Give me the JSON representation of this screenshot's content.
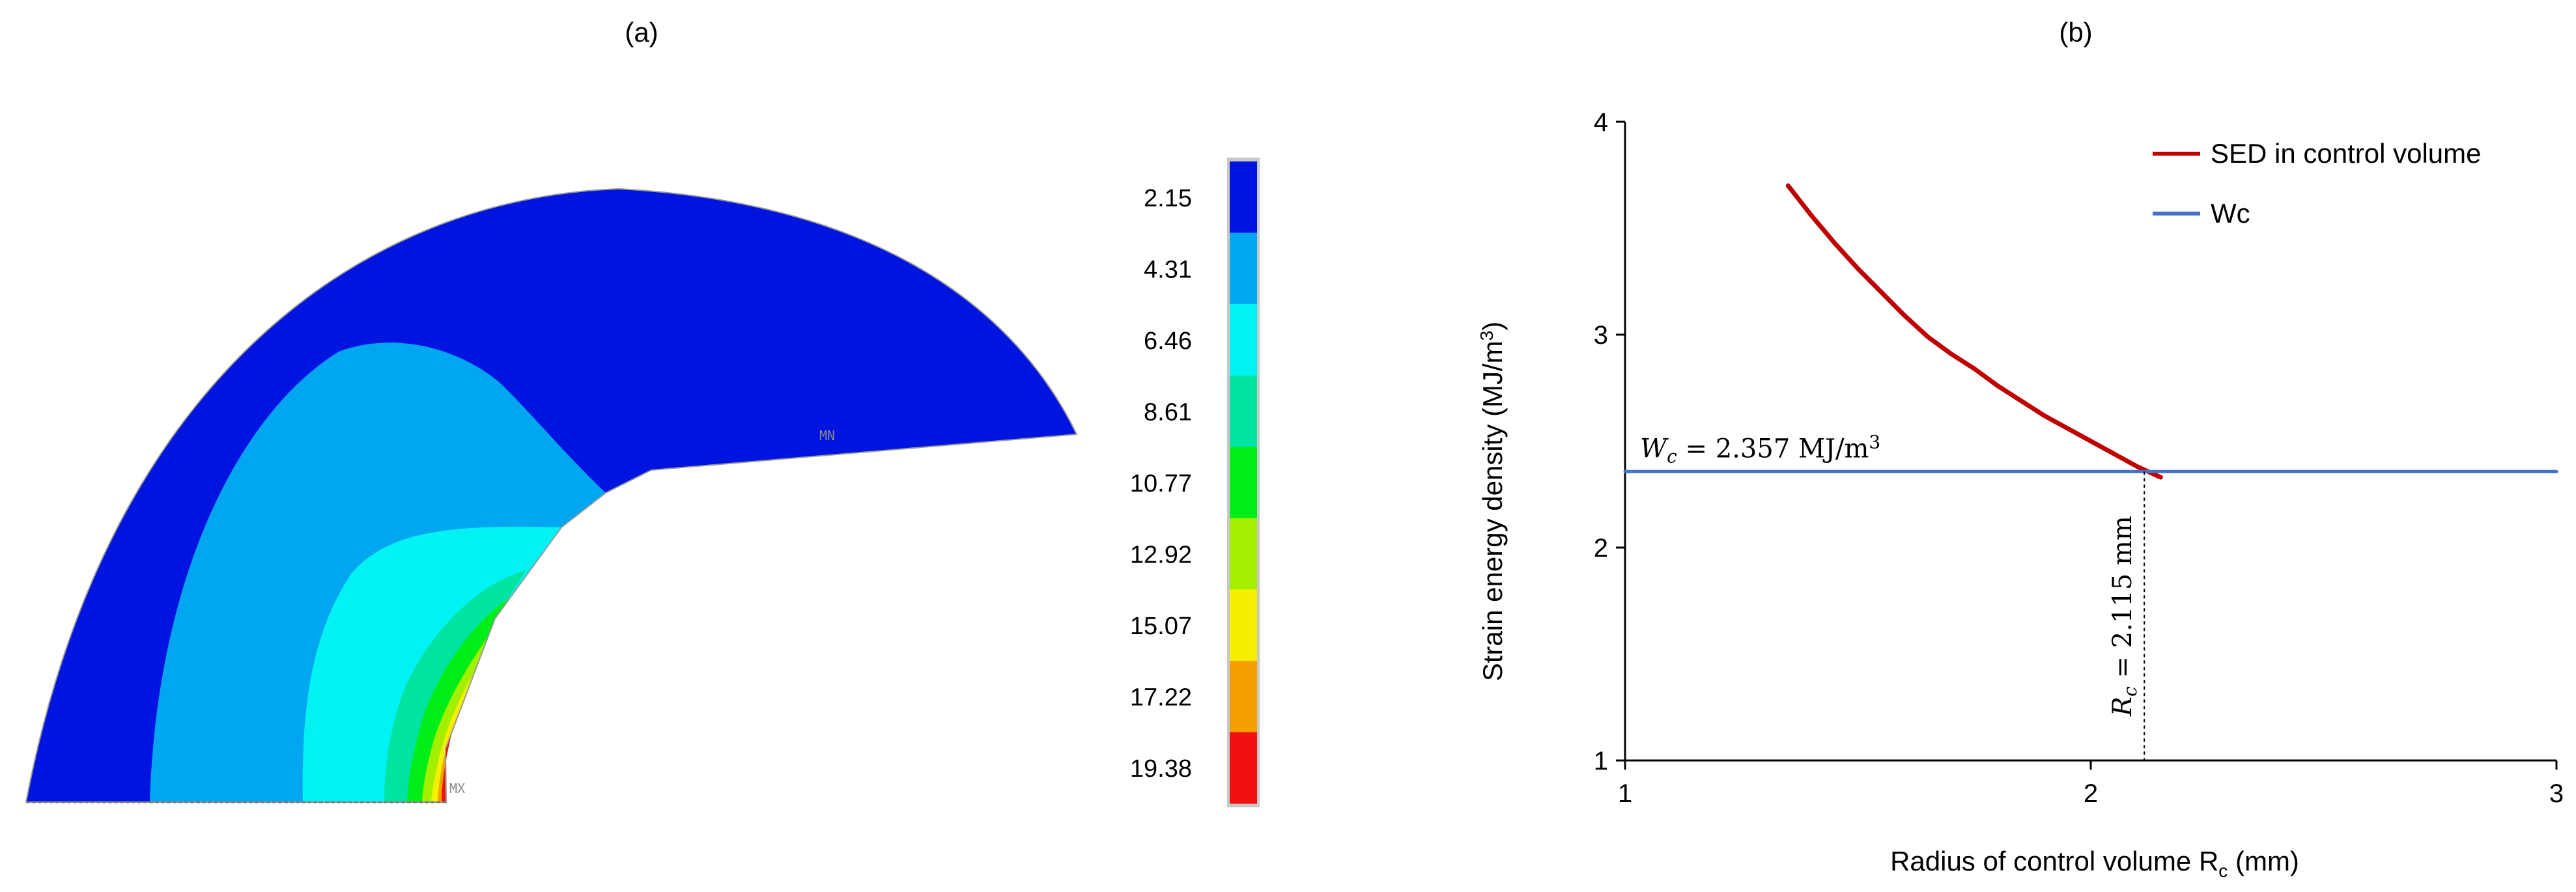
{
  "panels": {
    "a": {
      "label": "(a)"
    },
    "b": {
      "label": "(b)"
    }
  },
  "contour": {
    "min_marker": "MN",
    "max_marker": "MX",
    "colorbar": {
      "labels": [
        "2.15",
        "4.31",
        "6.46",
        "8.61",
        "10.77",
        "12.92",
        "15.07",
        "17.22",
        "19.38"
      ],
      "colors": [
        "#0014e0",
        "#00a6f0",
        "#00f2f2",
        "#00e4a2",
        "#00ee18",
        "#a4ee00",
        "#f4f000",
        "#f5a000",
        "#f01010"
      ]
    }
  },
  "chart_data": {
    "type": "line",
    "xlabel": "Radius of control volume R",
    "xlabel_sub": "c",
    "xlabel_unit": " (mm)",
    "ylabel": "Strain energy density (MJ/m",
    "ylabel_sup": "3",
    "ylabel_tail": ")",
    "xlim": [
      1,
      3
    ],
    "ylim": [
      1,
      4
    ],
    "xticks": [
      "1",
      "2",
      "3"
    ],
    "yticks": [
      "1",
      "2",
      "3",
      "4"
    ],
    "grid": false,
    "legend_position": "top-right",
    "series": [
      {
        "name": "SED in control volume",
        "color": "#c00000",
        "x": [
          1.35,
          1.4,
          1.45,
          1.5,
          1.55,
          1.6,
          1.65,
          1.7,
          1.75,
          1.8,
          1.85,
          1.9,
          1.95,
          2.0,
          2.05,
          2.1,
          2.15
        ],
        "y": [
          3.7,
          3.56,
          3.43,
          3.31,
          3.2,
          3.09,
          2.99,
          2.91,
          2.84,
          2.76,
          2.69,
          2.62,
          2.56,
          2.5,
          2.44,
          2.38,
          2.33
        ]
      },
      {
        "name": "Wc",
        "color": "#4472c4",
        "x": [
          1,
          3
        ],
        "y": [
          2.357,
          2.357
        ]
      }
    ],
    "annotations": {
      "wc_symbol": "W",
      "wc_sub": "c",
      "wc_text": " = 2.357 MJ/m",
      "wc_sup": "3",
      "rc_symbol": "R",
      "rc_sub": "c",
      "rc_text": " = 2.115 mm",
      "rc_value": 2.115
    }
  }
}
